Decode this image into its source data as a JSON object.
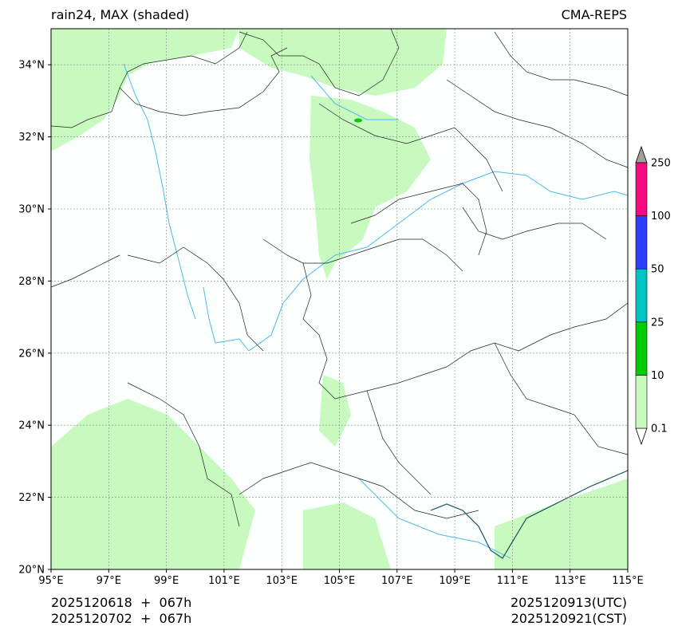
{
  "header": {
    "title_left": "rain24, MAX (shaded)",
    "title_right": "CMA-REPS"
  },
  "map": {
    "lon_ticks": [
      "95°E",
      "97°E",
      "99°E",
      "101°E",
      "103°E",
      "105°E",
      "107°E",
      "109°E",
      "111°E",
      "113°E",
      "115°E"
    ],
    "lat_ticks": [
      "34°N",
      "32°N",
      "30°N",
      "28°N",
      "26°N",
      "24°N",
      "22°N",
      "20°N"
    ],
    "lon_range": [
      95,
      115
    ],
    "lat_range": [
      20,
      35
    ],
    "colors": {
      "light_rain": "#c8fac0",
      "ocean_fill": "#fbfffe",
      "river": "#4db8f0",
      "border": "#222222",
      "grid": "#888888"
    }
  },
  "colorbar": {
    "levels": [
      "0.1",
      "10",
      "25",
      "50",
      "100",
      "250"
    ],
    "colors": [
      "#c8fac0",
      "#00cc00",
      "#00c4c4",
      "#2e3cff",
      "#f50a7f"
    ],
    "over_color": "#a0a0a0",
    "under_color": "#ffffff"
  },
  "footer": {
    "init_utc": "2025120618  +  067h",
    "init_cst": "2025120702  +  067h",
    "valid_utc": "2025120913(UTC)",
    "valid_cst": "2025120921(CST)"
  }
}
